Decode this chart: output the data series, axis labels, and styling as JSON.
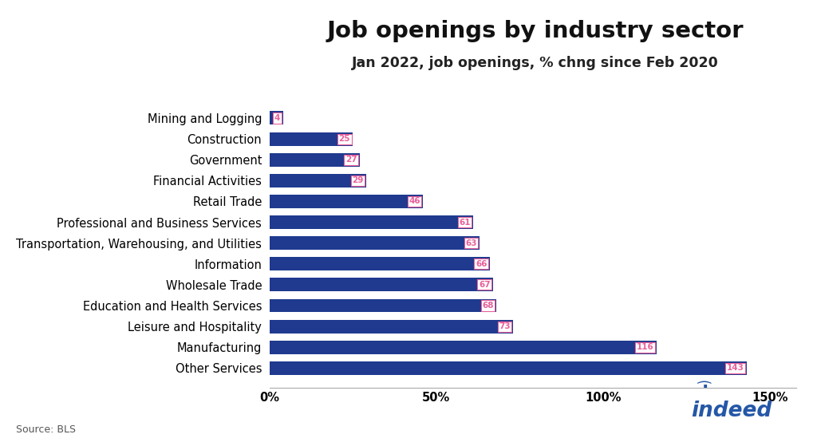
{
  "title": "Job openings by industry sector",
  "subtitle": "Jan 2022, job openings, % chng since Feb 2020",
  "source": "Source: BLS",
  "categories": [
    "Other Services",
    "Manufacturing",
    "Leisure and Hospitality",
    "Education and Health Services",
    "Wholesale Trade",
    "Information",
    "Transportation, Warehousing, and Utilities",
    "Professional and Business Services",
    "Retail Trade",
    "Financial Activities",
    "Government",
    "Construction",
    "Mining and Logging"
  ],
  "values": [
    143,
    116,
    73,
    68,
    67,
    66,
    63,
    61,
    46,
    29,
    27,
    25,
    4
  ],
  "bar_color": "#1f3a8f",
  "label_color": "#e8609a",
  "label_bg": "#ffffff",
  "label_border": "#e8609a",
  "xlim": [
    0,
    158
  ],
  "xticks": [
    0,
    50,
    100,
    150
  ],
  "xticklabels": [
    "0%",
    "50%",
    "100%",
    "150%"
  ],
  "title_fontsize": 21,
  "subtitle_fontsize": 12.5,
  "tick_fontsize": 10.5,
  "label_fontsize": 7.5,
  "background_color": "#ffffff",
  "indeed_color": "#2557a7"
}
